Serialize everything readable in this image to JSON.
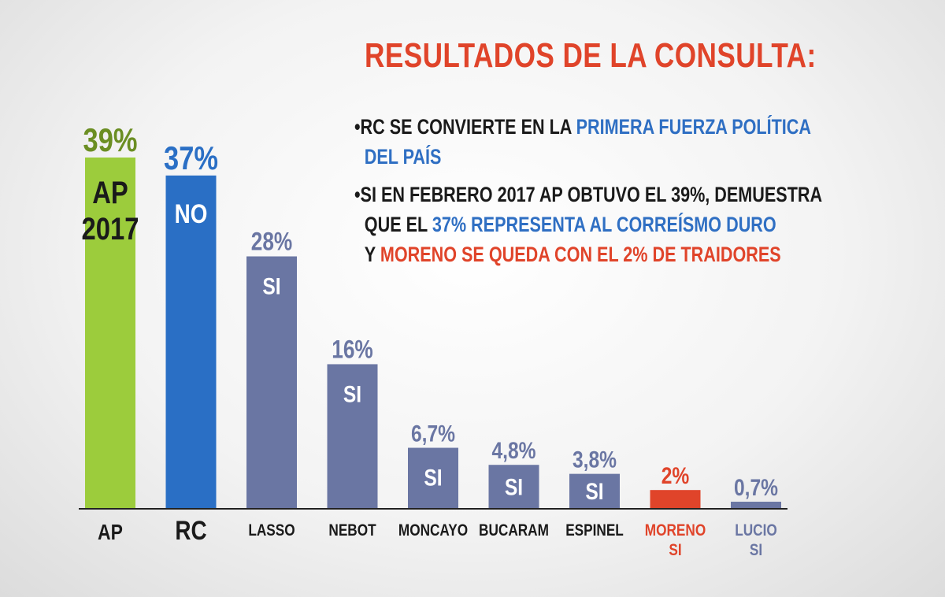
{
  "title": "RESULTADOS DE LA CONSULTA:",
  "bullets": {
    "b1": {
      "prefix": "•RC SE CONVIERTE EN LA ",
      "highlight1": "PRIMERA FUERZA POLÍTICA",
      "highlight2": "DEL PAÍS"
    },
    "b2": {
      "line1": "•SI EN FEBRERO 2017 AP OBTUVO EL 39%, DEMUESTRA",
      "line2_prefix": "QUE EL ",
      "line2_highlight": "37% REPRESENTA AL CORREÍSMO DURO",
      "line3_prefix": "Y ",
      "line3_highlight": "MORENO SE QUEDA CON EL 2% DE TRAIDORES"
    }
  },
  "chart_data": {
    "type": "bar",
    "title": "",
    "xlabel": "",
    "ylabel": "",
    "ylim": [
      0,
      39
    ],
    "grid": false,
    "categories": [
      "AP",
      "RC",
      "LASSO",
      "NEBOT",
      "MONCAYO",
      "BUCARAM",
      "ESPINEL",
      "MORENO",
      "LUCIO"
    ],
    "category_sublabels": [
      "",
      "",
      "",
      "",
      "",
      "",
      "",
      "SI",
      "SI"
    ],
    "values": [
      39,
      37,
      28,
      16,
      6.7,
      4.8,
      3.8,
      2,
      0.7
    ],
    "value_labels": [
      "39%",
      "37%",
      "28%",
      "16%",
      "6,7%",
      "4,8%",
      "3,8%",
      "2%",
      "0,7%"
    ],
    "bar_labels": [
      "AP\n2017",
      "NO",
      "SI",
      "SI",
      "SI",
      "SI",
      "SI",
      "",
      ""
    ],
    "colors": [
      "#9ccc3c",
      "#2a6fc5",
      "#6a76a3",
      "#6a76a3",
      "#6a76a3",
      "#6a76a3",
      "#6a76a3",
      "#e0442a",
      "#6a76a3"
    ],
    "value_label_colors": [
      "#6b8e23",
      "#2a6fc5",
      "#6a76a3",
      "#6a76a3",
      "#6a76a3",
      "#6a76a3",
      "#6a76a3",
      "#e0442a",
      "#6a76a3"
    ],
    "sublabel_colors": [
      "",
      "",
      "",
      "",
      "",
      "",
      "",
      "#e0442a",
      "#6a76a3"
    ]
  }
}
